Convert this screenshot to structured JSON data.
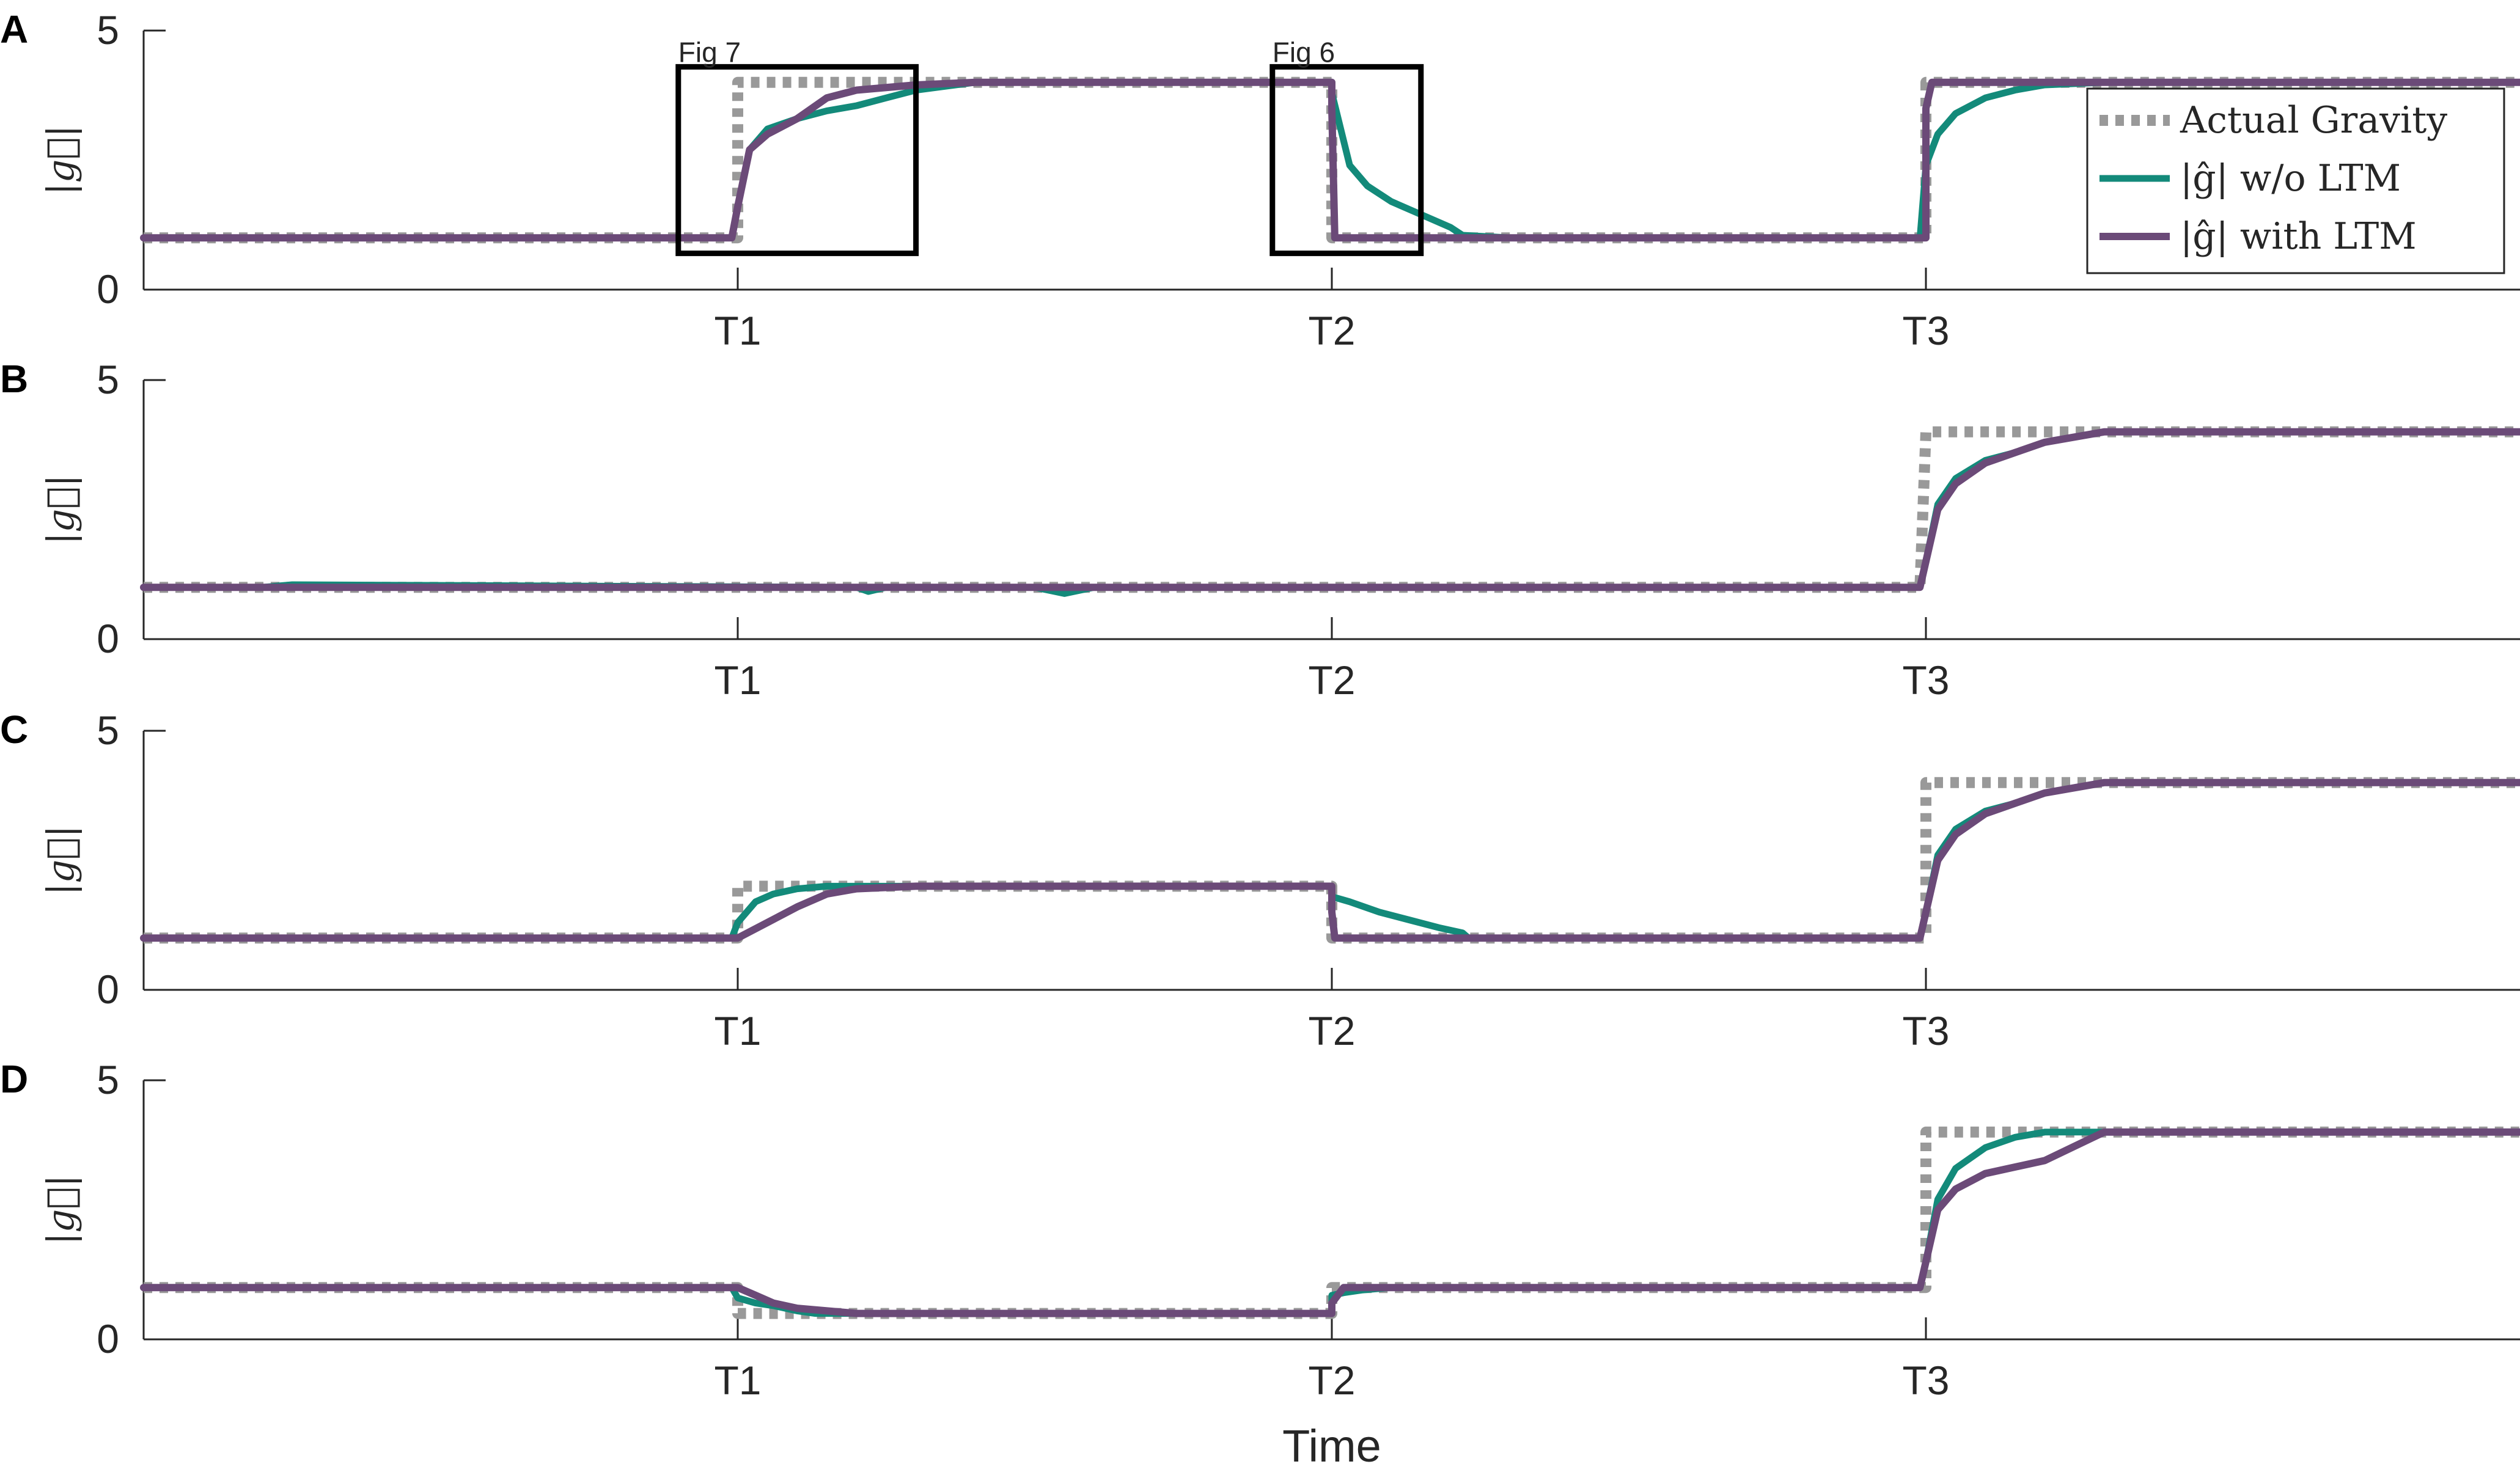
{
  "figure": {
    "xlabel": "Time",
    "ylabel": "|g⃗|",
    "legend": {
      "placement": "top-right",
      "entries": [
        "Actual Gravity",
        "|ĝ| w/o LTM",
        "|ĝ| with LTM"
      ]
    },
    "colors": {
      "actual": "#999999",
      "without_ltm": "#138a7a",
      "with_ltm": "#6b4a78",
      "axis": "#262626"
    }
  },
  "chart_data": [
    {
      "type": "line",
      "panel": "A",
      "xlabel": "",
      "ylabel": "|g⃗|",
      "xlim": [
        0,
        4
      ],
      "ylim": [
        0,
        5
      ],
      "yticks": [
        0,
        5
      ],
      "xticks": [
        {
          "value": 1,
          "label": "T1"
        },
        {
          "value": 2,
          "label": "T2"
        },
        {
          "value": 3,
          "label": "T3"
        }
      ],
      "annotations": [
        {
          "label": "Fig 7",
          "x_range": [
            0.9,
            1.3
          ],
          "y_range": [
            0.7,
            4.3
          ]
        },
        {
          "label": "Fig 6",
          "x_range": [
            1.9,
            2.15
          ],
          "y_range": [
            0.7,
            4.3
          ]
        }
      ],
      "series": [
        {
          "name": "Actual Gravity",
          "style": "dotted",
          "x": [
            0,
            1,
            1,
            2,
            2,
            3,
            3,
            4
          ],
          "y": [
            1,
            1,
            4,
            4,
            1,
            1,
            4,
            4
          ]
        },
        {
          "name": "|ĝ| w/o LTM",
          "x": [
            0,
            0.99,
            1.0,
            1.02,
            1.05,
            1.1,
            1.15,
            1.2,
            1.25,
            1.3,
            1.4,
            2.0,
            2.0,
            2.03,
            2.06,
            2.1,
            2.15,
            2.2,
            2.22,
            2.3,
            2.99,
            3.0,
            3.02,
            3.05,
            3.1,
            3.15,
            3.2,
            3.3,
            4
          ],
          "y": [
            1,
            1,
            1.6,
            2.7,
            3.1,
            3.3,
            3.45,
            3.55,
            3.7,
            3.85,
            4,
            4,
            3.8,
            2.4,
            2.0,
            1.7,
            1.45,
            1.2,
            1.05,
            1,
            1,
            2.4,
            3.0,
            3.4,
            3.7,
            3.85,
            3.95,
            4,
            4
          ]
        },
        {
          "name": "|ĝ| with LTM",
          "x": [
            0,
            0.99,
            1.0,
            1.02,
            1.05,
            1.1,
            1.15,
            1.2,
            1.3,
            1.4,
            2.0,
            2.0,
            2.005,
            3.0,
            3.0,
            3.01,
            4
          ],
          "y": [
            1,
            1,
            1.6,
            2.7,
            3.0,
            3.3,
            3.7,
            3.85,
            3.95,
            4,
            4,
            3.5,
            1,
            1,
            3.5,
            4,
            4
          ]
        }
      ]
    },
    {
      "type": "line",
      "panel": "B",
      "xlabel": "",
      "ylabel": "|g⃗|",
      "xlim": [
        0,
        4
      ],
      "ylim": [
        0,
        5
      ],
      "yticks": [
        0,
        5
      ],
      "xticks": [
        {
          "value": 1,
          "label": "T1"
        },
        {
          "value": 2,
          "label": "T2"
        },
        {
          "value": 3,
          "label": "T3"
        }
      ],
      "series": [
        {
          "name": "Actual Gravity",
          "style": "dotted",
          "x": [
            0,
            2.99,
            3.0,
            4
          ],
          "y": [
            1,
            1,
            4,
            4
          ]
        },
        {
          "name": "|ĝ| w/o LTM",
          "x": [
            0,
            0.2,
            0.25,
            1.2,
            1.22,
            1.25,
            1.5,
            1.55,
            1.6,
            2.99,
            3.0,
            3.02,
            3.05,
            3.1,
            3.15,
            3.2,
            3.3,
            4
          ],
          "y": [
            1,
            1,
            1.05,
            1,
            0.92,
            1,
            1,
            0.88,
            1,
            1,
            1.5,
            2.6,
            3.1,
            3.45,
            3.6,
            3.8,
            4,
            4
          ]
        },
        {
          "name": "|ĝ| with LTM",
          "x": [
            0,
            2.99,
            3.0,
            3.02,
            3.05,
            3.1,
            3.15,
            3.2,
            3.3,
            4
          ],
          "y": [
            1,
            1,
            1.5,
            2.5,
            3.0,
            3.4,
            3.6,
            3.8,
            4,
            4
          ]
        }
      ]
    },
    {
      "type": "line",
      "panel": "C",
      "xlabel": "",
      "ylabel": "|g⃗|",
      "xlim": [
        0,
        4
      ],
      "ylim": [
        0,
        5
      ],
      "yticks": [
        0,
        5
      ],
      "xticks": [
        {
          "value": 1,
          "label": "T1"
        },
        {
          "value": 2,
          "label": "T2"
        },
        {
          "value": 3,
          "label": "T3"
        }
      ],
      "series": [
        {
          "name": "Actual Gravity",
          "style": "dotted",
          "x": [
            0,
            1,
            1,
            2,
            2,
            3,
            3,
            4
          ],
          "y": [
            1,
            1,
            2,
            2,
            1,
            1,
            4,
            4
          ]
        },
        {
          "name": "|ĝ| w/o LTM",
          "x": [
            0,
            0.99,
            1.0,
            1.03,
            1.06,
            1.1,
            1.15,
            1.2,
            2.0,
            2.0,
            2.03,
            2.08,
            2.13,
            2.18,
            2.22,
            2.23,
            2.99,
            3.0,
            3.02,
            3.05,
            3.1,
            3.15,
            3.2,
            3.3,
            4
          ],
          "y": [
            1,
            1,
            1.3,
            1.7,
            1.85,
            1.95,
            2,
            2,
            2,
            1.8,
            1.7,
            1.5,
            1.35,
            1.2,
            1.1,
            1,
            1,
            1.5,
            2.6,
            3.1,
            3.45,
            3.6,
            3.8,
            4,
            4
          ]
        },
        {
          "name": "|ĝ| with LTM",
          "x": [
            0,
            1.0,
            1.05,
            1.1,
            1.15,
            1.2,
            1.3,
            2.0,
            2.0,
            2.005,
            2.99,
            3.0,
            3.02,
            3.05,
            3.1,
            3.15,
            3.2,
            3.3,
            4
          ],
          "y": [
            1,
            1,
            1.3,
            1.6,
            1.85,
            1.95,
            2,
            2,
            1.5,
            1,
            1,
            1.5,
            2.5,
            3.0,
            3.4,
            3.6,
            3.8,
            4,
            4
          ]
        }
      ]
    },
    {
      "type": "line",
      "panel": "D",
      "xlabel": "Time",
      "ylabel": "|g⃗|",
      "xlim": [
        0,
        4
      ],
      "ylim": [
        0,
        5
      ],
      "yticks": [
        0,
        5
      ],
      "xticks": [
        {
          "value": 1,
          "label": "T1"
        },
        {
          "value": 2,
          "label": "T2"
        },
        {
          "value": 3,
          "label": "T3"
        }
      ],
      "series": [
        {
          "name": "Actual Gravity",
          "style": "dotted",
          "x": [
            0,
            1,
            1,
            2,
            2,
            3,
            3,
            4
          ],
          "y": [
            1,
            1,
            0.5,
            0.5,
            1,
            1,
            4,
            4
          ]
        },
        {
          "name": "|ĝ| w/o LTM",
          "x": [
            0,
            0.99,
            1.0,
            1.03,
            1.06,
            1.1,
            1.13,
            2.0,
            2.0,
            2.02,
            2.05,
            2.1,
            2.99,
            3.0,
            3.02,
            3.05,
            3.1,
            3.15,
            3.2,
            3.3,
            4
          ],
          "y": [
            1,
            1,
            0.8,
            0.7,
            0.65,
            0.55,
            0.5,
            0.5,
            0.85,
            0.9,
            0.95,
            1,
            1,
            1.5,
            2.7,
            3.3,
            3.7,
            3.9,
            4,
            4,
            4
          ]
        },
        {
          "name": "|ĝ| with LTM",
          "x": [
            0,
            1.0,
            1.03,
            1.06,
            1.1,
            1.2,
            2.0,
            2.0,
            2.02,
            2.99,
            3.0,
            3.02,
            3.05,
            3.1,
            3.2,
            3.3,
            4
          ],
          "y": [
            1,
            1,
            0.85,
            0.7,
            0.6,
            0.5,
            0.5,
            0.7,
            1,
            1,
            1.5,
            2.5,
            2.9,
            3.2,
            3.45,
            4,
            4
          ]
        }
      ]
    }
  ]
}
